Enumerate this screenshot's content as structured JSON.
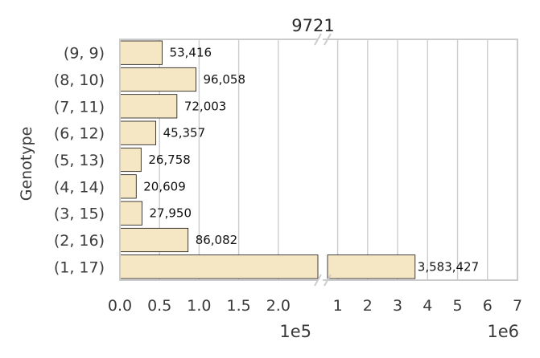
{
  "chart_data": {
    "type": "bar",
    "orientation": "horizontal",
    "title": "9721",
    "ylabel": "Genotype",
    "categories": [
      "(9, 9)",
      "(8, 10)",
      "(7, 11)",
      "(6, 12)",
      "(5, 13)",
      "(4, 14)",
      "(3, 15)",
      "(2, 16)",
      "(1, 17)"
    ],
    "values": [
      53416,
      96058,
      72003,
      45357,
      26758,
      20609,
      27950,
      86082,
      3583427
    ],
    "value_labels": [
      "53,416",
      "96,058",
      "72,003",
      "45,357",
      "26,758",
      "20,609",
      "27,950",
      "86,082",
      "3,583,427"
    ],
    "broken_axis": true,
    "left_axis": {
      "xlim": [
        0,
        250000
      ],
      "ticks": [
        0,
        50000,
        100000,
        150000,
        200000
      ],
      "tick_labels": [
        "0.0",
        "0.5",
        "1.0",
        "1.5",
        "2.0"
      ],
      "offset_label": "1e5"
    },
    "right_axis": {
      "xlim": [
        500000,
        7000000
      ],
      "ticks": [
        1000000,
        2000000,
        3000000,
        4000000,
        5000000,
        6000000,
        7000000
      ],
      "tick_labels": [
        "1",
        "2",
        "3",
        "4",
        "5",
        "6",
        "7"
      ],
      "offset_label": "1e6"
    },
    "grid": true,
    "bar_color": "#f5e6c4",
    "bar_edge_color": "#111111",
    "grid_color": "#cccccc"
  }
}
